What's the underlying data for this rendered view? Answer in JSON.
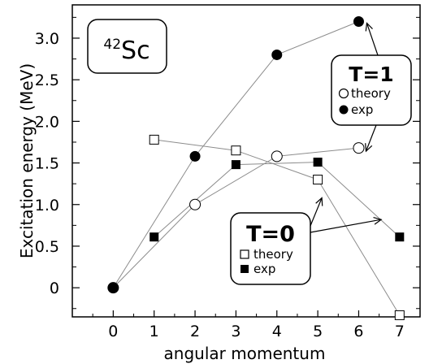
{
  "chart_data": {
    "type": "scatter",
    "xlabel": "angular momentum",
    "ylabel": "Excitation energy (MeV)",
    "xlim": [
      -1,
      7.5
    ],
    "ylim": [
      -0.35,
      3.4
    ],
    "x_ticks": [
      "0",
      "1",
      "2",
      "3",
      "4",
      "5",
      "6",
      "7"
    ],
    "y_ticks": [
      "0",
      "0.5",
      "1.0",
      "1.5",
      "2.0",
      "2.5",
      "3.0"
    ],
    "grid": false,
    "nucleus_label": {
      "sup": "42",
      "main": "Sc"
    },
    "groups": [
      {
        "title": "T=1",
        "theory_label": "theory",
        "exp_label": "exp",
        "series": [
          {
            "kind": "theory",
            "marker": "open-circle",
            "points": [
              [
                0,
                0
              ],
              [
                2,
                1.0
              ],
              [
                4,
                1.58
              ],
              [
                6,
                1.68
              ]
            ]
          },
          {
            "kind": "exp",
            "marker": "filled-circle",
            "points": [
              [
                0,
                0
              ],
              [
                2,
                1.58
              ],
              [
                4,
                2.8
              ],
              [
                6,
                3.2
              ]
            ]
          }
        ]
      },
      {
        "title": "T=0",
        "theory_label": "theory",
        "exp_label": "exp",
        "series": [
          {
            "kind": "theory",
            "marker": "open-square",
            "points": [
              [
                1,
                1.78
              ],
              [
                3,
                1.65
              ],
              [
                5,
                1.3
              ],
              [
                7,
                -0.33
              ]
            ]
          },
          {
            "kind": "exp",
            "marker": "filled-square",
            "points": [
              [
                1,
                0.61
              ],
              [
                3,
                1.48
              ],
              [
                5,
                1.51
              ],
              [
                7,
                0.61
              ]
            ]
          }
        ]
      }
    ]
  }
}
